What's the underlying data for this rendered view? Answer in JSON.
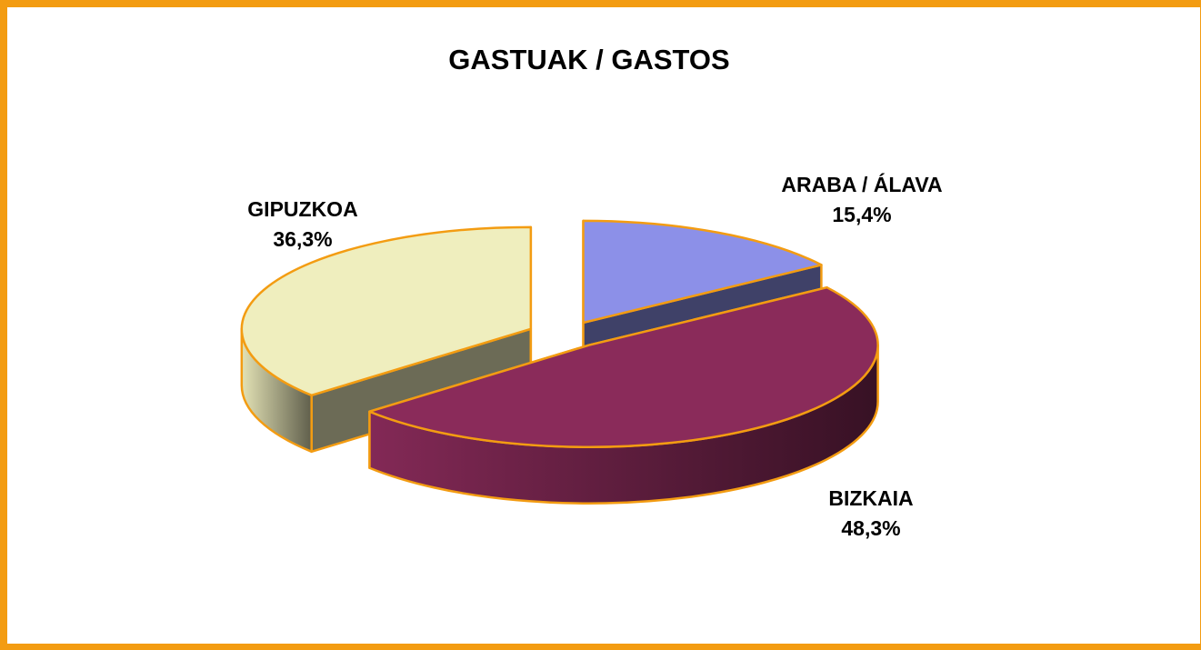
{
  "chart_data": {
    "type": "pie3d",
    "title": "GASTUAK / GASTOS",
    "categories": [
      "ARABA / ÁLAVA",
      "BIZKAIA",
      "GIPUZKOA"
    ],
    "values": [
      15.4,
      48.3,
      36.3
    ],
    "value_labels": [
      "15,4%",
      "48,3%",
      "36,3%"
    ],
    "colors": [
      "#8c90e8",
      "#8a2b5a",
      "#efeebe"
    ]
  }
}
